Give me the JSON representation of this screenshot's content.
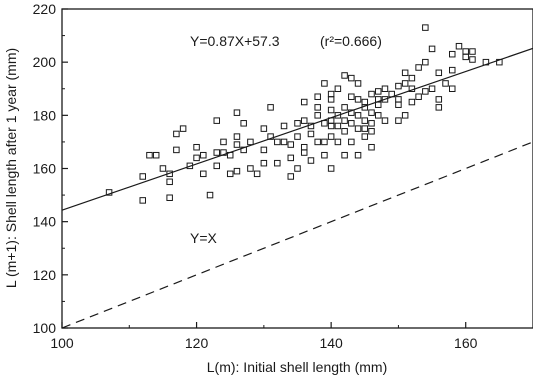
{
  "chart_data": {
    "type": "scatter",
    "xlabel": "L(m): Initial shell length (mm)",
    "ylabel": "L (m+1): Shell length after 1 year (mm)",
    "xlim": [
      100,
      170
    ],
    "ylim": [
      100,
      220
    ],
    "xticks": [
      100,
      120,
      140,
      160
    ],
    "yticks": [
      100,
      120,
      140,
      160,
      180,
      200,
      220
    ],
    "grid": false,
    "marker": "open-square",
    "annotations": {
      "regression": "Y=0.87X+57.3",
      "r2": "(r²=0.666)",
      "identity": "Y=X"
    },
    "lines": [
      {
        "label": "Y=0.87X+57.3",
        "slope": 0.87,
        "intercept": 57.3,
        "style": "solid"
      },
      {
        "label": "Y=X",
        "slope": 1,
        "intercept": 0,
        "style": "dashed"
      }
    ],
    "points": [
      [
        107,
        151
      ],
      [
        112,
        148
      ],
      [
        112,
        157
      ],
      [
        113,
        165
      ],
      [
        114,
        165
      ],
      [
        115,
        160
      ],
      [
        116,
        158
      ],
      [
        116,
        155
      ],
      [
        116,
        149
      ],
      [
        117,
        173
      ],
      [
        117,
        167
      ],
      [
        118,
        175
      ],
      [
        119,
        161
      ],
      [
        120,
        164
      ],
      [
        120,
        168
      ],
      [
        121,
        158
      ],
      [
        121,
        165
      ],
      [
        122,
        150
      ],
      [
        123,
        166
      ],
      [
        123,
        161
      ],
      [
        123,
        178
      ],
      [
        124,
        166
      ],
      [
        124,
        170
      ],
      [
        125,
        158
      ],
      [
        125,
        165
      ],
      [
        126,
        169
      ],
      [
        126,
        159
      ],
      [
        126,
        172
      ],
      [
        126,
        181
      ],
      [
        127,
        167
      ],
      [
        127,
        177
      ],
      [
        128,
        160
      ],
      [
        128,
        170
      ],
      [
        129,
        158
      ],
      [
        130,
        167
      ],
      [
        130,
        175
      ],
      [
        130,
        162
      ],
      [
        131,
        172
      ],
      [
        131,
        183
      ],
      [
        132,
        170
      ],
      [
        132,
        162
      ],
      [
        133,
        170
      ],
      [
        133,
        176
      ],
      [
        134,
        169
      ],
      [
        134,
        157
      ],
      [
        134,
        164
      ],
      [
        135,
        177
      ],
      [
        135,
        172
      ],
      [
        135,
        160
      ],
      [
        136,
        178
      ],
      [
        136,
        168
      ],
      [
        136,
        166
      ],
      [
        136,
        185
      ],
      [
        137,
        176
      ],
      [
        137,
        163
      ],
      [
        137,
        173
      ],
      [
        138,
        180
      ],
      [
        138,
        183
      ],
      [
        138,
        170
      ],
      [
        138,
        187
      ],
      [
        139,
        177
      ],
      [
        139,
        170
      ],
      [
        139,
        192
      ],
      [
        139,
        165
      ],
      [
        140,
        178
      ],
      [
        140,
        176
      ],
      [
        140,
        186
      ],
      [
        140,
        182
      ],
      [
        140,
        172
      ],
      [
        140,
        160
      ],
      [
        140,
        188
      ],
      [
        141,
        180
      ],
      [
        141,
        176
      ],
      [
        141,
        170
      ],
      [
        141,
        190
      ],
      [
        142,
        174
      ],
      [
        142,
        195
      ],
      [
        142,
        178
      ],
      [
        142,
        183
      ],
      [
        142,
        165
      ],
      [
        143,
        177
      ],
      [
        143,
        181
      ],
      [
        143,
        170
      ],
      [
        143,
        187
      ],
      [
        143,
        194
      ],
      [
        144,
        175
      ],
      [
        144,
        186
      ],
      [
        144,
        180
      ],
      [
        144,
        165
      ],
      [
        144,
        192
      ],
      [
        145,
        175
      ],
      [
        145,
        185
      ],
      [
        145,
        178
      ],
      [
        145,
        172
      ],
      [
        145,
        183
      ],
      [
        146,
        181
      ],
      [
        146,
        177
      ],
      [
        146,
        188
      ],
      [
        146,
        168
      ],
      [
        146,
        174
      ],
      [
        147,
        189
      ],
      [
        147,
        180
      ],
      [
        147,
        186
      ],
      [
        147,
        184
      ],
      [
        148,
        178
      ],
      [
        148,
        186
      ],
      [
        148,
        190
      ],
      [
        149,
        188
      ],
      [
        150,
        191
      ],
      [
        150,
        178
      ],
      [
        150,
        186
      ],
      [
        150,
        184
      ],
      [
        151,
        196
      ],
      [
        151,
        192
      ],
      [
        151,
        180
      ],
      [
        152,
        190
      ],
      [
        152,
        194
      ],
      [
        152,
        185
      ],
      [
        153,
        198
      ],
      [
        153,
        187
      ],
      [
        154,
        213
      ],
      [
        154,
        189
      ],
      [
        154,
        200
      ],
      [
        155,
        190
      ],
      [
        155,
        205
      ],
      [
        156,
        196
      ],
      [
        156,
        186
      ],
      [
        156,
        183
      ],
      [
        157,
        192
      ],
      [
        158,
        197
      ],
      [
        158,
        203
      ],
      [
        158,
        190
      ],
      [
        159,
        206
      ],
      [
        160,
        202
      ],
      [
        160,
        204
      ],
      [
        161,
        204
      ],
      [
        161,
        201
      ],
      [
        163,
        200
      ],
      [
        165,
        200
      ]
    ]
  }
}
